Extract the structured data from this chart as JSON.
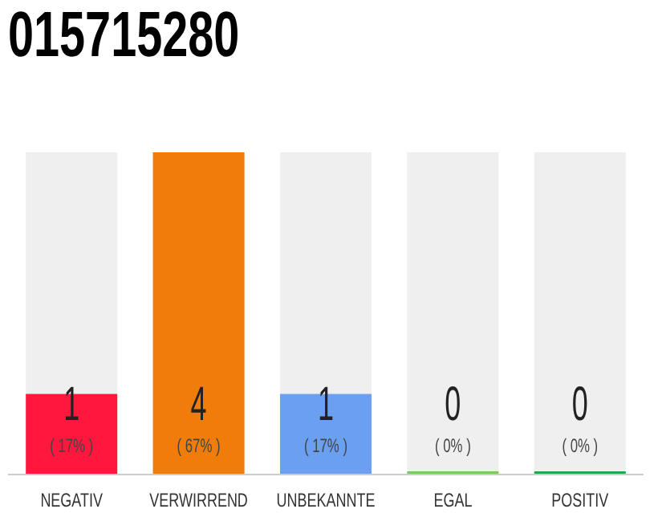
{
  "chart_data": {
    "type": "bar",
    "title": "015715280",
    "categories": [
      "NEGATIV",
      "VERWIRREND",
      "UNBEKANNTE",
      "EGAL",
      "POSITIV"
    ],
    "values": [
      1,
      4,
      1,
      0,
      0
    ],
    "colors": [
      "#ff173d",
      "#f07d0a",
      "#6aa0ef",
      "#7dc85a",
      "#22a84a"
    ],
    "data_labels": true,
    "annotations": [
      "( 17% )",
      "( 67% )",
      "( 17% )",
      "( 0% )",
      "( 0% )"
    ]
  }
}
